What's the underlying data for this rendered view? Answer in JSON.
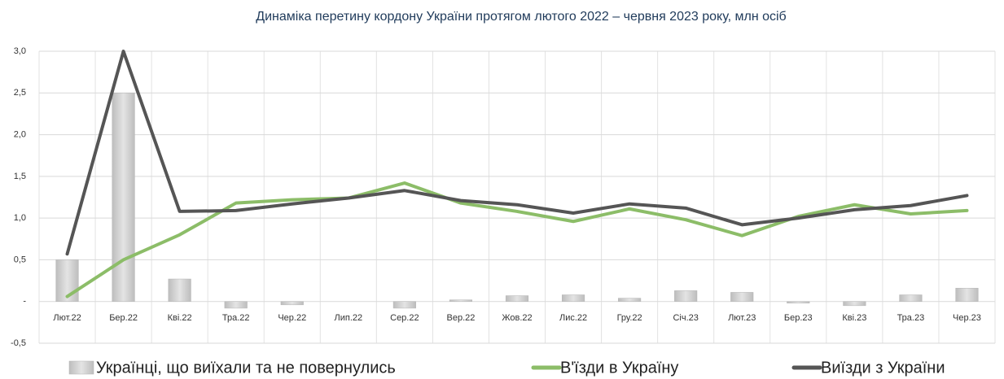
{
  "chart_data": {
    "type": "combo",
    "title": "Динаміка перетину кордону України протягом лютого 2022 – червня 2023 року, млн осіб",
    "categories": [
      "Лют.22",
      "Бер.22",
      "Кві.22",
      "Тра.22",
      "Чер.22",
      "Лип.22",
      "Сер.22",
      "Вер.22",
      "Жов.22",
      "Лис.22",
      "Гру.22",
      "Січ.23",
      "Лют.23",
      "Бер.23",
      "Кві.23",
      "Тра.23",
      "Чер.23"
    ],
    "series": [
      {
        "name": "Українці, що виїхали та не повернулись",
        "type": "bar",
        "color": "#c9c9c9",
        "values": [
          0.5,
          2.5,
          0.27,
          -0.08,
          -0.04,
          0,
          -0.08,
          0.02,
          0.07,
          0.08,
          0.04,
          0.13,
          0.11,
          -0.02,
          -0.05,
          0.08,
          0.16
        ]
      },
      {
        "name": "В'їзди в Україну",
        "type": "line",
        "color": "#8cbd68",
        "values": [
          0.06,
          0.5,
          0.8,
          1.18,
          1.22,
          1.24,
          1.42,
          1.18,
          1.08,
          0.96,
          1.11,
          0.98,
          0.79,
          1.02,
          1.16,
          1.05,
          1.09
        ]
      },
      {
        "name": "Виїзди з України",
        "type": "line",
        "color": "#555555",
        "values": [
          0.57,
          3.0,
          1.08,
          1.09,
          1.17,
          1.24,
          1.33,
          1.21,
          1.16,
          1.06,
          1.17,
          1.12,
          0.92,
          1.0,
          1.1,
          1.15,
          1.27
        ]
      }
    ],
    "ylim": [
      -0.5,
      3.0
    ],
    "yticks": [
      {
        "value": -0.5,
        "label": "-0,5"
      },
      {
        "value": 0,
        "label": "-"
      },
      {
        "value": 0.5,
        "label": "0,5"
      },
      {
        "value": 1.0,
        "label": "1,0"
      },
      {
        "value": 1.5,
        "label": "1,5"
      },
      {
        "value": 2.0,
        "label": "2,0"
      },
      {
        "value": 2.5,
        "label": "2,5"
      },
      {
        "value": 3.0,
        "label": "3,0"
      }
    ],
    "grid": true,
    "legend": "bottom"
  }
}
